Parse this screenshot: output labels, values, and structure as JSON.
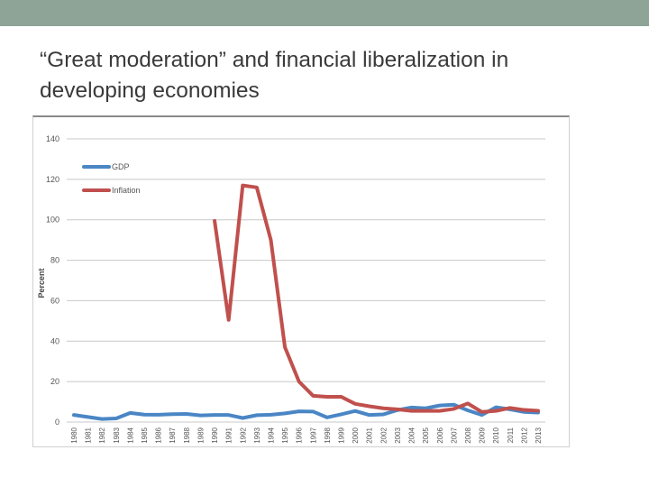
{
  "slide": {
    "title": "“Great moderation” and financial liberalization in developing economies"
  },
  "colors": {
    "top_bar": "#8ea497",
    "gdp": "#4a86c5",
    "inflation": "#c0504d",
    "grid": "#c8c8c8"
  },
  "chart_data": {
    "type": "line",
    "ylabel": "Percent",
    "xlabel": "",
    "ylim": [
      0,
      140
    ],
    "yticks": [
      "0",
      "20",
      "40",
      "60",
      "80",
      "100",
      "120",
      "140"
    ],
    "grid": true,
    "legend_position": "top-left",
    "x": [
      "1980",
      "1981",
      "1982",
      "1983",
      "1984",
      "1985",
      "1986",
      "1987",
      "1988",
      "1989",
      "1990",
      "1991",
      "1992",
      "1993",
      "1994",
      "1995",
      "1996",
      "1997",
      "1998",
      "1999",
      "2000",
      "2001",
      "2002",
      "2003",
      "2004",
      "2005",
      "2006",
      "2007",
      "2008",
      "2009",
      "2010",
      "2011",
      "2012",
      "2013"
    ],
    "series": [
      {
        "name": "GDP",
        "color": "#4a86c5",
        "values": [
          3.5,
          2.5,
          1.5,
          1.8,
          4.5,
          3.7,
          3.6,
          3.9,
          4.0,
          3.3,
          3.5,
          3.5,
          2.0,
          3.4,
          3.6,
          4.3,
          5.3,
          5.2,
          2.3,
          3.8,
          5.5,
          3.5,
          3.8,
          5.9,
          7.2,
          6.8,
          8.2,
          8.6,
          5.8,
          3.5,
          7.3,
          6.3,
          5.0,
          4.7
        ]
      },
      {
        "name": "Inflation",
        "color": "#c0504d",
        "values": [
          null,
          null,
          null,
          null,
          null,
          null,
          null,
          null,
          null,
          null,
          99.5,
          50.5,
          117,
          116,
          90,
          37,
          20,
          13,
          12.5,
          12.5,
          9.0,
          7.8,
          6.8,
          6.3,
          5.5,
          5.5,
          5.5,
          6.5,
          9.2,
          5.0,
          5.5,
          7.0,
          6.0,
          5.6
        ]
      }
    ]
  }
}
